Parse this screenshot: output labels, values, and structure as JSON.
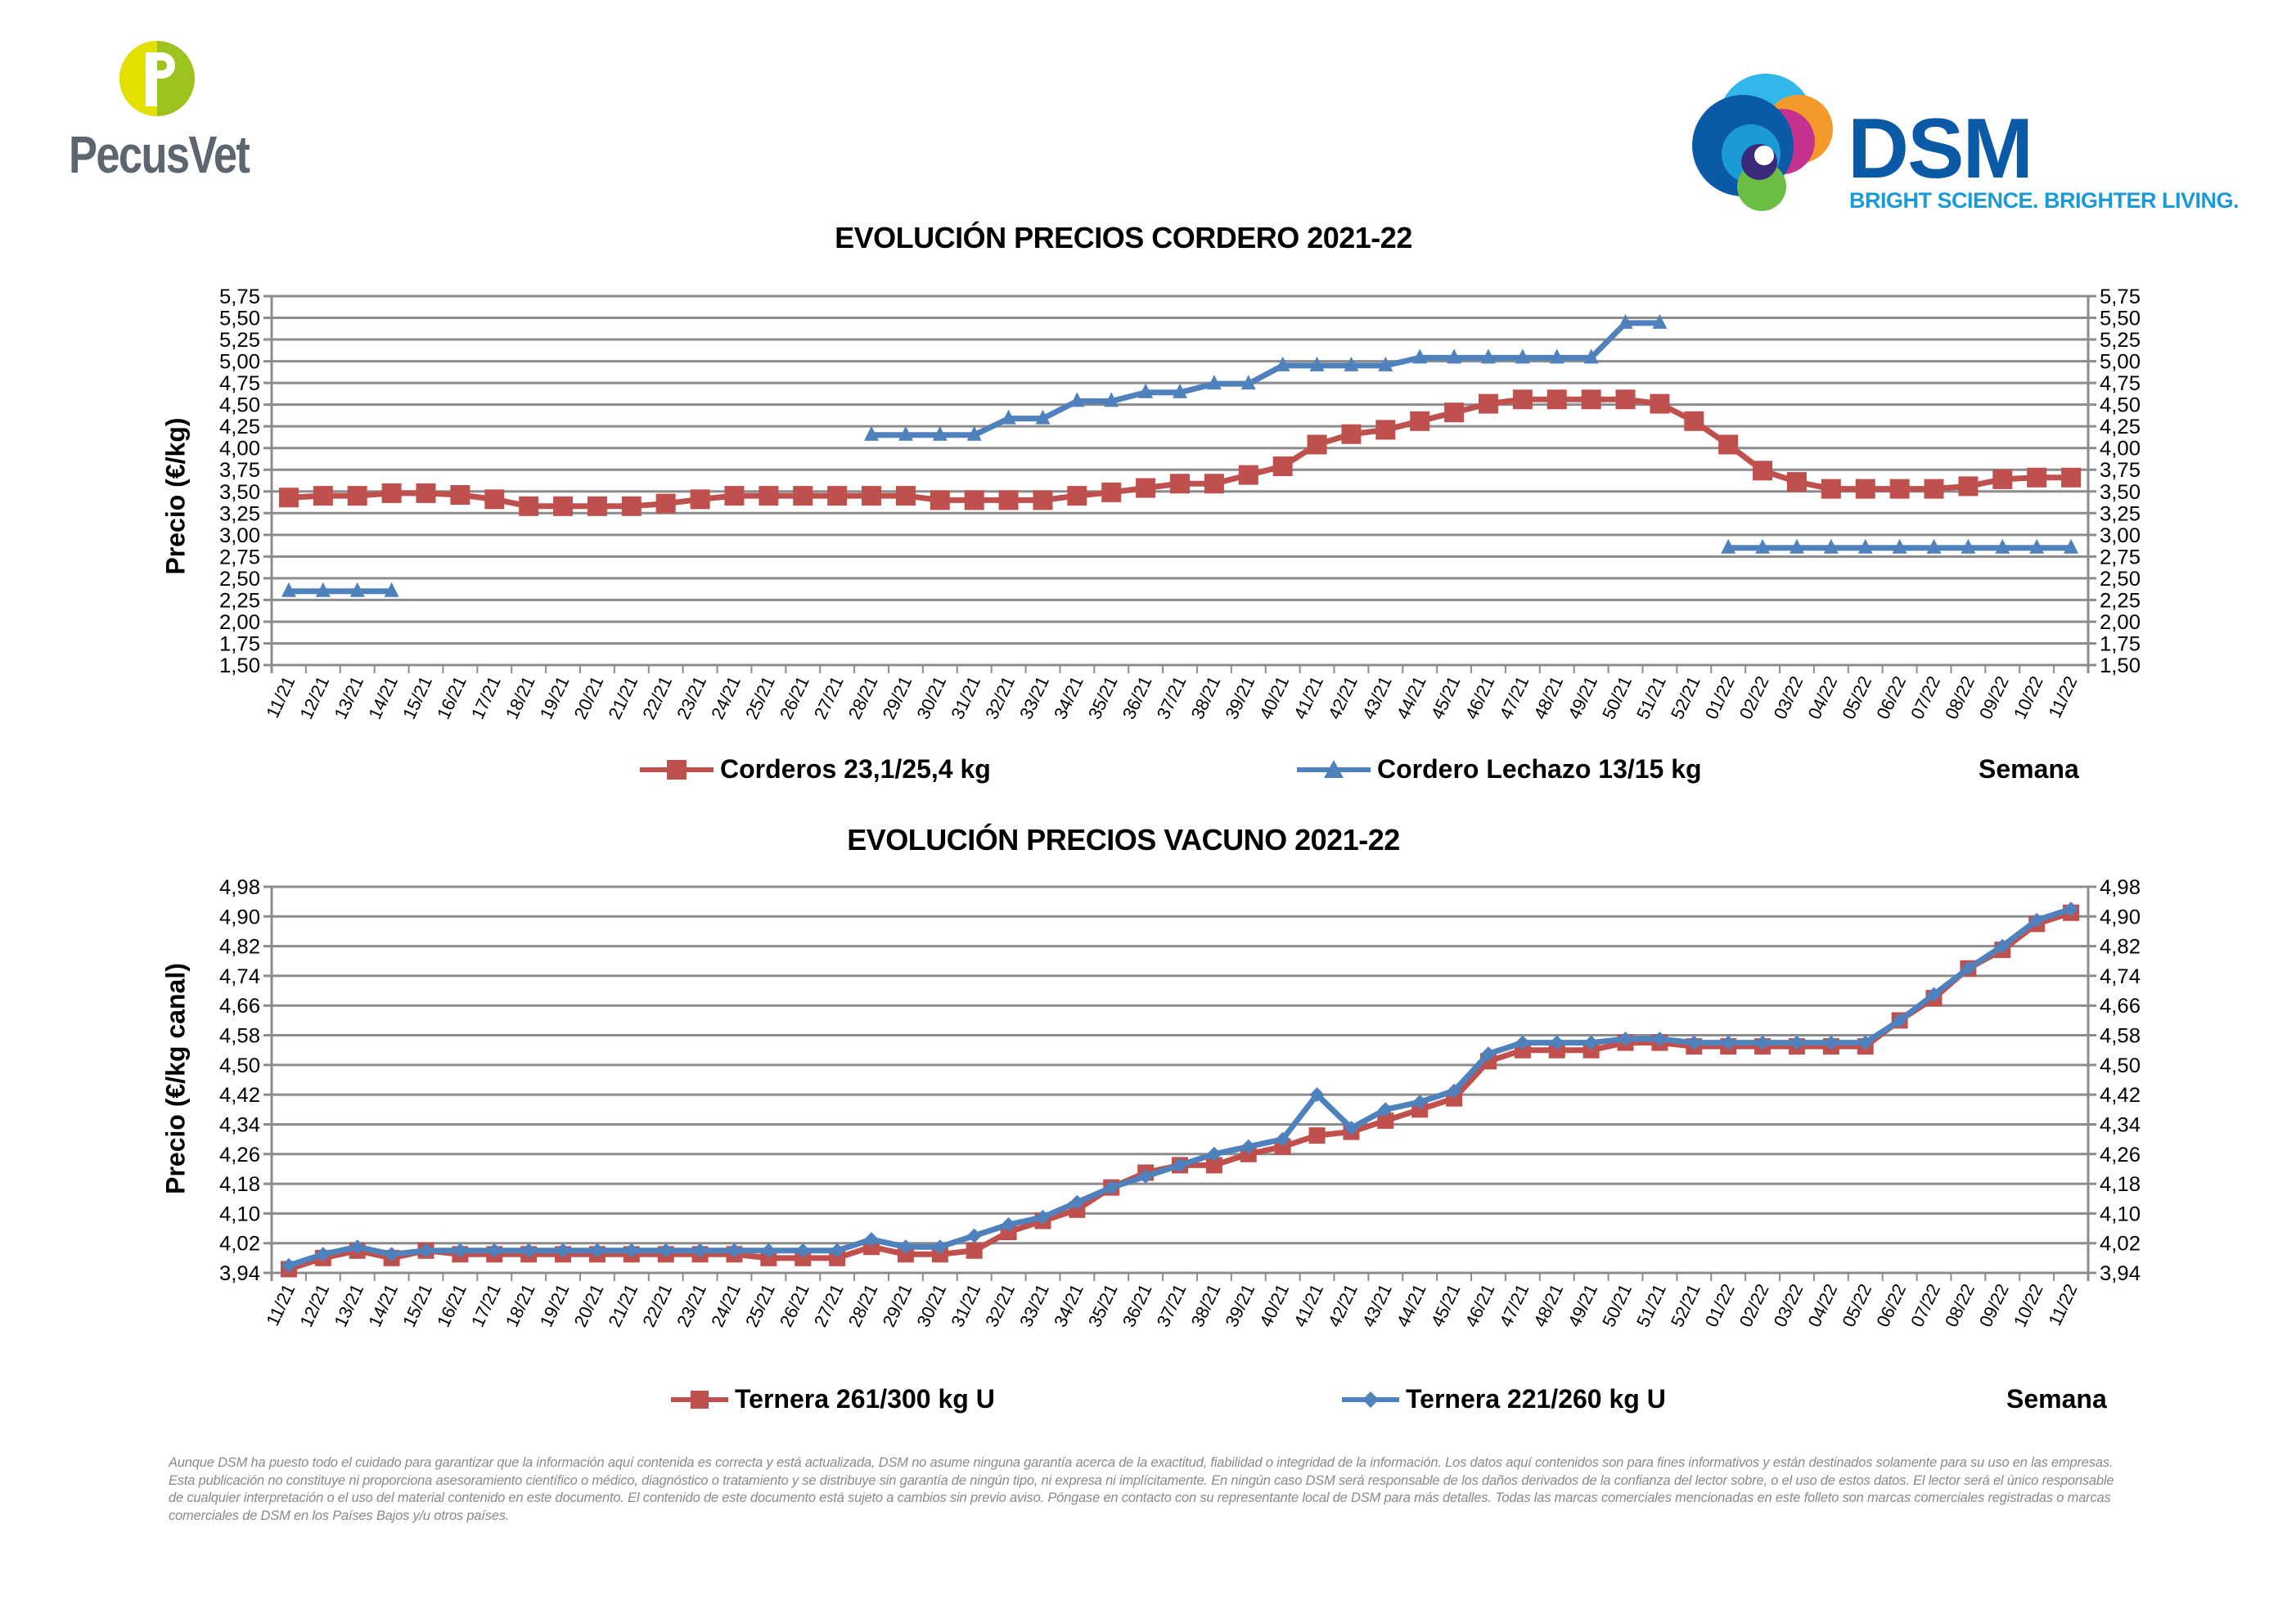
{
  "header": {
    "pecusvet_logo": "PecusVet",
    "dsm_logo": "DSM",
    "dsm_tagline": "BRIGHT SCIENCE. BRIGHTER LIVING."
  },
  "colors": {
    "red": "#c0504d",
    "blue": "#4f81bd",
    "grid": "#8c8c8c"
  },
  "chart_data": [
    {
      "type": "line",
      "title": "EVOLUCIÓN PRECIOS CORDERO 2021-22",
      "ylabel": "Precio (€/kg)",
      "xlabel": "Semana",
      "ylim": [
        1.5,
        5.75
      ],
      "yticks": [
        "5,75",
        "5,50",
        "5,25",
        "5,00",
        "4,75",
        "4,50",
        "4,25",
        "4,00",
        "3,75",
        "3,50",
        "3,25",
        "3,00",
        "2,75",
        "2,50",
        "2,25",
        "2,00",
        "1,75",
        "1,50"
      ],
      "ytick_values": [
        5.75,
        5.5,
        5.25,
        5.0,
        4.75,
        4.5,
        4.25,
        4.0,
        3.75,
        3.5,
        3.25,
        3.0,
        2.75,
        2.5,
        2.25,
        2.0,
        1.75,
        1.5
      ],
      "grid": true,
      "legend": "bottom",
      "categories": [
        "11/21",
        "12/21",
        "13/21",
        "14/21",
        "15/21",
        "16/21",
        "17/21",
        "18/21",
        "19/21",
        "20/21",
        "21/21",
        "22/21",
        "23/21",
        "24/21",
        "25/21",
        "26/21",
        "27/21",
        "28/21",
        "29/21",
        "30/21",
        "31/21",
        "32/21",
        "33/21",
        "34/21",
        "35/21",
        "36/21",
        "37/21",
        "38/21",
        "39/21",
        "40/21",
        "41/21",
        "42/21",
        "43/21",
        "44/21",
        "45/21",
        "46/21",
        "47/21",
        "48/21",
        "49/21",
        "50/21",
        "51/21",
        "52/21",
        "01/22",
        "02/22",
        "03/22",
        "04/22",
        "05/22",
        "06/22",
        "07/22",
        "08/22",
        "09/22",
        "10/22",
        "11/22"
      ],
      "series": [
        {
          "name": "Corderos 23,1/25,4 kg",
          "color": "#c0504d",
          "marker": "square",
          "values": [
            3.43,
            3.45,
            3.45,
            3.48,
            3.48,
            3.46,
            3.41,
            3.33,
            3.33,
            3.33,
            3.33,
            3.36,
            3.41,
            3.45,
            3.45,
            3.45,
            3.45,
            3.45,
            3.45,
            3.4,
            3.4,
            3.4,
            3.4,
            3.45,
            3.49,
            3.54,
            3.59,
            3.59,
            3.69,
            3.79,
            4.04,
            4.16,
            4.21,
            4.31,
            4.41,
            4.51,
            4.56,
            4.56,
            4.56,
            4.56,
            4.51,
            4.31,
            4.04,
            3.74,
            3.61,
            3.53,
            3.53,
            3.53,
            3.53,
            3.56,
            3.64,
            3.66,
            3.66
          ]
        },
        {
          "name": "Cordero Lechazo 13/15 kg",
          "color": "#4f81bd",
          "marker": "triangle",
          "values": [
            2.35,
            2.35,
            2.35,
            2.35,
            null,
            null,
            null,
            null,
            null,
            null,
            null,
            null,
            null,
            null,
            null,
            null,
            null,
            4.15,
            4.15,
            4.15,
            4.15,
            4.34,
            4.34,
            4.54,
            4.54,
            4.64,
            4.64,
            4.74,
            4.74,
            4.95,
            4.95,
            4.95,
            4.95,
            5.04,
            5.04,
            5.04,
            5.04,
            5.04,
            5.04,
            5.44,
            5.44,
            null,
            2.85,
            2.85,
            2.85,
            2.85,
            2.85,
            2.85,
            2.85,
            2.85,
            2.85,
            2.85,
            2.85
          ]
        }
      ]
    },
    {
      "type": "line",
      "title": "EVOLUCIÓN PRECIOS VACUNO 2021-22",
      "ylabel": "Precio (€/kg canal)",
      "xlabel": "Semana",
      "ylim": [
        3.94,
        4.98
      ],
      "yticks": [
        "4,98",
        "4,90",
        "4,82",
        "4,74",
        "4,66",
        "4,58",
        "4,50",
        "4,42",
        "4,34",
        "4,26",
        "4,18",
        "4,10",
        "4,02",
        "3,94"
      ],
      "ytick_values": [
        4.98,
        4.9,
        4.82,
        4.74,
        4.66,
        4.58,
        4.5,
        4.42,
        4.34,
        4.26,
        4.18,
        4.1,
        4.02,
        3.94
      ],
      "grid": true,
      "legend": "bottom",
      "categories": [
        "11/21",
        "12/21",
        "13/21",
        "14/21",
        "15/21",
        "16/21",
        "17/21",
        "18/21",
        "19/21",
        "20/21",
        "21/21",
        "22/21",
        "23/21",
        "24/21",
        "25/21",
        "26/21",
        "27/21",
        "28/21",
        "29/21",
        "30/21",
        "31/21",
        "32/21",
        "33/21",
        "34/21",
        "35/21",
        "36/21",
        "37/21",
        "38/21",
        "39/21",
        "40/21",
        "41/21",
        "42/21",
        "43/21",
        "44/21",
        "45/21",
        "46/21",
        "47/21",
        "48/21",
        "49/21",
        "50/21",
        "51/21",
        "52/21",
        "01/22",
        "02/22",
        "03/22",
        "04/22",
        "05/22",
        "06/22",
        "07/22",
        "08/22",
        "09/22",
        "10/22",
        "11/22"
      ],
      "series": [
        {
          "name": "Ternera 261/300 kg U",
          "color": "#c0504d",
          "marker": "square",
          "values": [
            3.95,
            3.98,
            4.0,
            3.98,
            4.0,
            3.99,
            3.99,
            3.99,
            3.99,
            3.99,
            3.99,
            3.99,
            3.99,
            3.99,
            3.98,
            3.98,
            3.98,
            4.01,
            3.99,
            3.99,
            4.0,
            4.05,
            4.08,
            4.11,
            4.17,
            4.21,
            4.23,
            4.23,
            4.26,
            4.28,
            4.31,
            4.32,
            4.35,
            4.38,
            4.41,
            4.51,
            4.54,
            4.54,
            4.54,
            4.56,
            4.56,
            4.55,
            4.55,
            4.55,
            4.55,
            4.55,
            4.55,
            4.62,
            4.68,
            4.76,
            4.81,
            4.88,
            4.91
          ]
        },
        {
          "name": "Ternera 221/260 kg U",
          "color": "#4f81bd",
          "marker": "diamond",
          "values": [
            3.96,
            3.99,
            4.01,
            3.99,
            4.0,
            4.0,
            4.0,
            4.0,
            4.0,
            4.0,
            4.0,
            4.0,
            4.0,
            4.0,
            4.0,
            4.0,
            4.0,
            4.03,
            4.01,
            4.01,
            4.04,
            4.07,
            4.09,
            4.13,
            4.17,
            4.2,
            4.23,
            4.26,
            4.28,
            4.3,
            4.42,
            4.33,
            4.38,
            4.4,
            4.43,
            4.53,
            4.56,
            4.56,
            4.56,
            4.57,
            4.57,
            4.56,
            4.56,
            4.56,
            4.56,
            4.56,
            4.56,
            4.62,
            4.69,
            4.76,
            4.82,
            4.89,
            4.92
          ]
        }
      ]
    }
  ],
  "disclaimer": "Aunque DSM ha puesto todo el cuidado para garantizar que la información aquí contenida es correcta y está actualizada, DSM no asume ninguna garantía acerca de la exactitud, fiabilidad o integridad de la información. Los datos aquí contenidos son para fines informativos y están destinados solamente para su uso en las empresas. Esta publicación no constituye ni proporciona asesoramiento científico o médico, diagnóstico o tratamiento y se distribuye sin garantía de ningún tipo, ni expresa ni implícitamente. En ningún caso DSM será responsable de los daños derivados de la confianza del lector sobre, o el uso de estos datos. El lector será el único responsable de cualquier interpretación o el uso del material contenido en este documento. El contenido de este documento está sujeto a cambios sin previo aviso. Póngase en contacto con su representante local de DSM para más detalles. Todas las marcas comerciales mencionadas en este folleto son marcas comerciales registradas o marcas comerciales de DSM en los Países Bajos y/u otros países."
}
